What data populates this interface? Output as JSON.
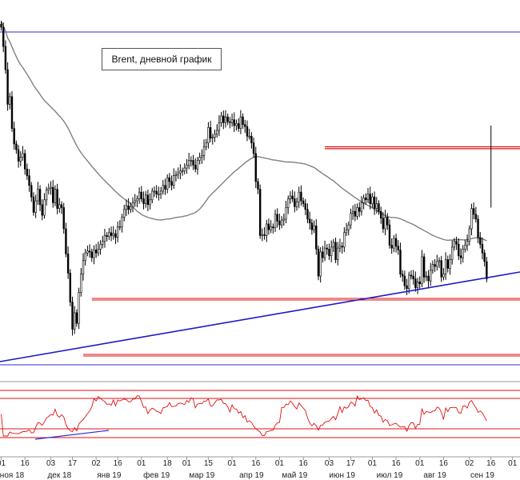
{
  "chart_data": {
    "type": "candlestick",
    "title": "Brent, дневной график",
    "x_ticks": [
      {
        "label": "01",
        "bar": 0
      },
      {
        "label": "16",
        "bar": 11
      },
      {
        "label": "03",
        "bar": 23
      },
      {
        "label": "17",
        "bar": 33
      },
      {
        "label": "02",
        "bar": 44
      },
      {
        "label": "16",
        "bar": 54
      },
      {
        "label": "01",
        "bar": 65
      },
      {
        "label": "18",
        "bar": 77
      },
      {
        "label": "01",
        "bar": 86
      },
      {
        "label": "15",
        "bar": 96
      },
      {
        "label": "01",
        "bar": 107
      },
      {
        "label": "16",
        "bar": 118
      },
      {
        "label": "01",
        "bar": 129
      },
      {
        "label": "16",
        "bar": 140
      },
      {
        "label": "03",
        "bar": 152
      },
      {
        "label": "17",
        "bar": 162
      },
      {
        "label": "01",
        "bar": 172
      },
      {
        "label": "16",
        "bar": 183
      },
      {
        "label": "01",
        "bar": 194
      },
      {
        "label": "16",
        "bar": 205
      },
      {
        "label": "02",
        "bar": 217
      },
      {
        "label": "16",
        "bar": 227
      },
      {
        "label": "01",
        "bar": 237
      }
    ],
    "month_labels": [
      {
        "label": "ноя 18",
        "bar": 5
      },
      {
        "label": "дек 18",
        "bar": 27
      },
      {
        "label": "янв 19",
        "bar": 50
      },
      {
        "label": "фев 19",
        "bar": 72
      },
      {
        "label": "мар 19",
        "bar": 93
      },
      {
        "label": "апр 19",
        "bar": 116
      },
      {
        "label": "май 19",
        "bar": 136
      },
      {
        "label": "июн 19",
        "bar": 158
      },
      {
        "label": "июл 19",
        "bar": 180
      },
      {
        "label": "авг 19",
        "bar": 201
      },
      {
        "label": "сен 19",
        "bar": 223
      }
    ],
    "closes": [
      84.5,
      82.5,
      80.1,
      76.5,
      77.3,
      74.0,
      72.4,
      71.8,
      70.6,
      71.0,
      71.4,
      69.8,
      69.1,
      68.1,
      66.9,
      65.3,
      66.5,
      67.7,
      66.1,
      65.0,
      66.6,
      67.6,
      67.8,
      67.9,
      66.3,
      67.7,
      65.7,
      66.1,
      65.8,
      63.6,
      61.0,
      59.0,
      56.0,
      53.2,
      54.9,
      53.8,
      57.0,
      58.9,
      60.3,
      61.1,
      61.3,
      61.2,
      60.6,
      61.4,
      61.1,
      61.5,
      62.0,
      62.3,
      62.9,
      62.8,
      63.2,
      62.9,
      63.1,
      62.7,
      63.8,
      63.8,
      64.8,
      65.6,
      66.0,
      65.6,
      65.9,
      66.3,
      66.5,
      66.7,
      67.4,
      66.7,
      66.2,
      67.1,
      66.1,
      66.6,
      67.5,
      67.5,
      67.2,
      67.2,
      67.5,
      68.1,
      67.7,
      68.9,
      68.5,
      68.1,
      69.1,
      69.2,
      69.4,
      69.6,
      69.6,
      69.9,
      70.2,
      70.7,
      70.7,
      70.2,
      69.8,
      70.7,
      71.0,
      71.2,
      72.1,
      72.5,
      74.1,
      73.0,
      73.1,
      73.4,
      73.8,
      74.6,
      75.3,
      74.6,
      75.2,
      74.7,
      74.6,
      74.9,
      74.3,
      74.5,
      74.0,
      75.2,
      74.4,
      74.2,
      73.2,
      73.2,
      72.5,
      71.4,
      68.5,
      67.7,
      62.9,
      63.0,
      62.9,
      64.1,
      63.5,
      63.8,
      63.7,
      65.1,
      64.4,
      64.0,
      64.5,
      64.6,
      65.8,
      66.7,
      67.0,
      66.7,
      65.9,
      66.4,
      67.4,
      66.5,
      66.2,
      65.6,
      64.6,
      64.2,
      63.5,
      63.9,
      61.5,
      58.7,
      61.2,
      60.6,
      61.6,
      61.5,
      60.8,
      61.7,
      62.2,
      60.4,
      61.6,
      61.8,
      61.7,
      63.2,
      63.5,
      64.0,
      65.2,
      65.4,
      64.9,
      65.8,
      65.4,
      66.3,
      66.8,
      66.6,
      67.2,
      66.2,
      66.9,
      65.7,
      66.2,
      65.4,
      64.7,
      63.6,
      64.8,
      64.0,
      61.9,
      61.6,
      62.6,
      61.8,
      61.4,
      58.9,
      58.7,
      57.7,
      57.4,
      58.8,
      58.7,
      58.4,
      57.5,
      58.1,
      57.9,
      60.7,
      58.6,
      58.7,
      58.2,
      59.3,
      59.9,
      59.7,
      60.2,
      60.3,
      58.6,
      58.9,
      60.4,
      59.5,
      60.4,
      61.7,
      62.3,
      62.0,
      60.8,
      60.6,
      61.5,
      61.9,
      62.3,
      63.6,
      65.7,
      65.1,
      64.6,
      62.7,
      62.0,
      61.1,
      60.2,
      58.4
    ],
    "ma_line": "SMA (gray)",
    "resistance_band": [
      71.9,
      72.1
    ],
    "support_levels": [
      56.3,
      50.5
    ],
    "trendline": {
      "from": {
        "bar": 24,
        "price": 50.6
      },
      "to": {
        "bar": 238,
        "price": 56.2
      }
    },
    "channel": {
      "top": 84.0,
      "bottom": 49.5
    },
    "oscillator_levels_px_note": "lower pane oscillator with horizontal reference lines"
  }
}
